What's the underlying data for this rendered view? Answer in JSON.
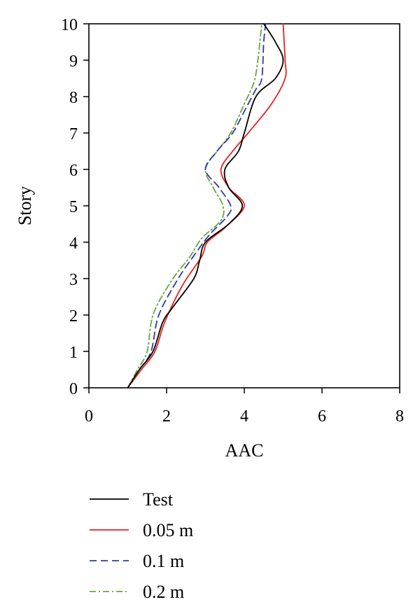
{
  "chart_data": {
    "type": "line",
    "title": "",
    "xlabel": "AAC",
    "ylabel": "Story",
    "xlim": [
      0,
      8
    ],
    "ylim": [
      0,
      10
    ],
    "xticks": [
      "0",
      "2",
      "4",
      "6",
      "8"
    ],
    "yticks": [
      "0",
      "1",
      "2",
      "3",
      "4",
      "5",
      "6",
      "7",
      "8",
      "9",
      "10"
    ],
    "grid": false,
    "legend_position": "below",
    "series": [
      {
        "name": "Test",
        "color": "#000000",
        "dash": "solid",
        "points": [
          [
            1.0,
            0
          ],
          [
            1.3,
            0.5
          ],
          [
            1.65,
            1.0
          ],
          [
            1.9,
            1.8
          ],
          [
            2.15,
            2.2
          ],
          [
            2.7,
            3.0
          ],
          [
            2.85,
            3.5
          ],
          [
            3.0,
            4.0
          ],
          [
            3.6,
            4.5
          ],
          [
            3.95,
            5.0
          ],
          [
            3.6,
            5.5
          ],
          [
            3.5,
            6.0
          ],
          [
            3.85,
            6.5
          ],
          [
            4.0,
            7.0
          ],
          [
            4.3,
            8.0
          ],
          [
            4.8,
            8.5
          ],
          [
            5.0,
            9.0
          ],
          [
            4.8,
            9.5
          ],
          [
            4.5,
            10.0
          ]
        ]
      },
      {
        "name": "0.05 m",
        "color": "#e8231e",
        "dash": "solid",
        "points": [
          [
            1.0,
            0
          ],
          [
            1.35,
            0.5
          ],
          [
            1.7,
            1.0
          ],
          [
            1.95,
            1.8
          ],
          [
            2.4,
            2.8
          ],
          [
            2.9,
            3.6
          ],
          [
            3.05,
            4.0
          ],
          [
            3.5,
            4.4
          ],
          [
            4.0,
            5.0
          ],
          [
            3.6,
            5.5
          ],
          [
            3.4,
            6.0
          ],
          [
            3.7,
            6.5
          ],
          [
            4.1,
            7.0
          ],
          [
            4.7,
            7.8
          ],
          [
            5.05,
            8.5
          ],
          [
            5.05,
            9.0
          ],
          [
            5.0,
            10.0
          ]
        ]
      },
      {
        "name": "0.1 m",
        "color": "#2b3aa8",
        "dash": "dashed",
        "points": [
          [
            1.0,
            0
          ],
          [
            1.3,
            0.5
          ],
          [
            1.6,
            1.0
          ],
          [
            1.8,
            2.0
          ],
          [
            2.3,
            3.0
          ],
          [
            2.75,
            3.7
          ],
          [
            3.1,
            4.2
          ],
          [
            3.55,
            4.7
          ],
          [
            3.65,
            5.0
          ],
          [
            3.35,
            5.5
          ],
          [
            3.0,
            6.0
          ],
          [
            3.3,
            6.5
          ],
          [
            3.7,
            7.0
          ],
          [
            4.05,
            7.7
          ],
          [
            4.3,
            8.2
          ],
          [
            4.45,
            8.5
          ],
          [
            4.5,
            9.5
          ],
          [
            4.55,
            10.0
          ]
        ]
      },
      {
        "name": "0.2 m",
        "color": "#6aa63a",
        "dash": "dashdot",
        "points": [
          [
            1.0,
            0
          ],
          [
            1.25,
            0.5
          ],
          [
            1.5,
            1.0
          ],
          [
            1.65,
            2.0
          ],
          [
            2.1,
            2.9
          ],
          [
            2.6,
            3.6
          ],
          [
            2.9,
            4.1
          ],
          [
            3.4,
            4.6
          ],
          [
            3.45,
            5.0
          ],
          [
            3.2,
            5.5
          ],
          [
            3.0,
            6.0
          ],
          [
            3.3,
            6.5
          ],
          [
            3.65,
            7.0
          ],
          [
            4.0,
            7.8
          ],
          [
            4.25,
            8.4
          ],
          [
            4.35,
            9.0
          ],
          [
            4.4,
            9.5
          ],
          [
            4.45,
            10.0
          ]
        ]
      }
    ]
  }
}
